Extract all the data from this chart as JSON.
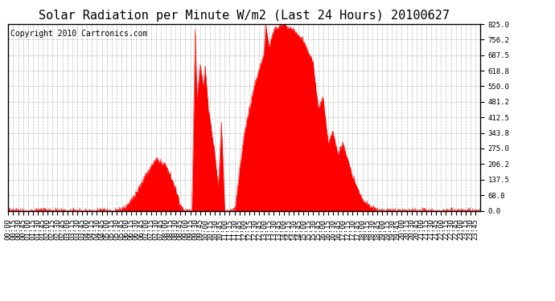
{
  "title": "Solar Radiation per Minute W/m2 (Last 24 Hours) 20100627",
  "copyright_text": "Copyright 2010 Cartronics.com",
  "y_min": 0.0,
  "y_max": 825.0,
  "y_ticks": [
    0.0,
    68.8,
    137.5,
    206.2,
    275.0,
    343.8,
    412.5,
    481.2,
    550.0,
    618.8,
    687.5,
    756.2,
    825.0
  ],
  "fill_color": "#FF0000",
  "line_color": "#FF0000",
  "baseline_color": "#FF0000",
  "bg_color": "#FFFFFF",
  "plot_bg_color": "#FFFFFF",
  "grid_color": "#AAAAAA",
  "title_fontsize": 11,
  "copyright_fontsize": 7,
  "tick_fontsize": 6.5,
  "minutes_per_day": 1440,
  "x_tick_interval_minutes": 15
}
